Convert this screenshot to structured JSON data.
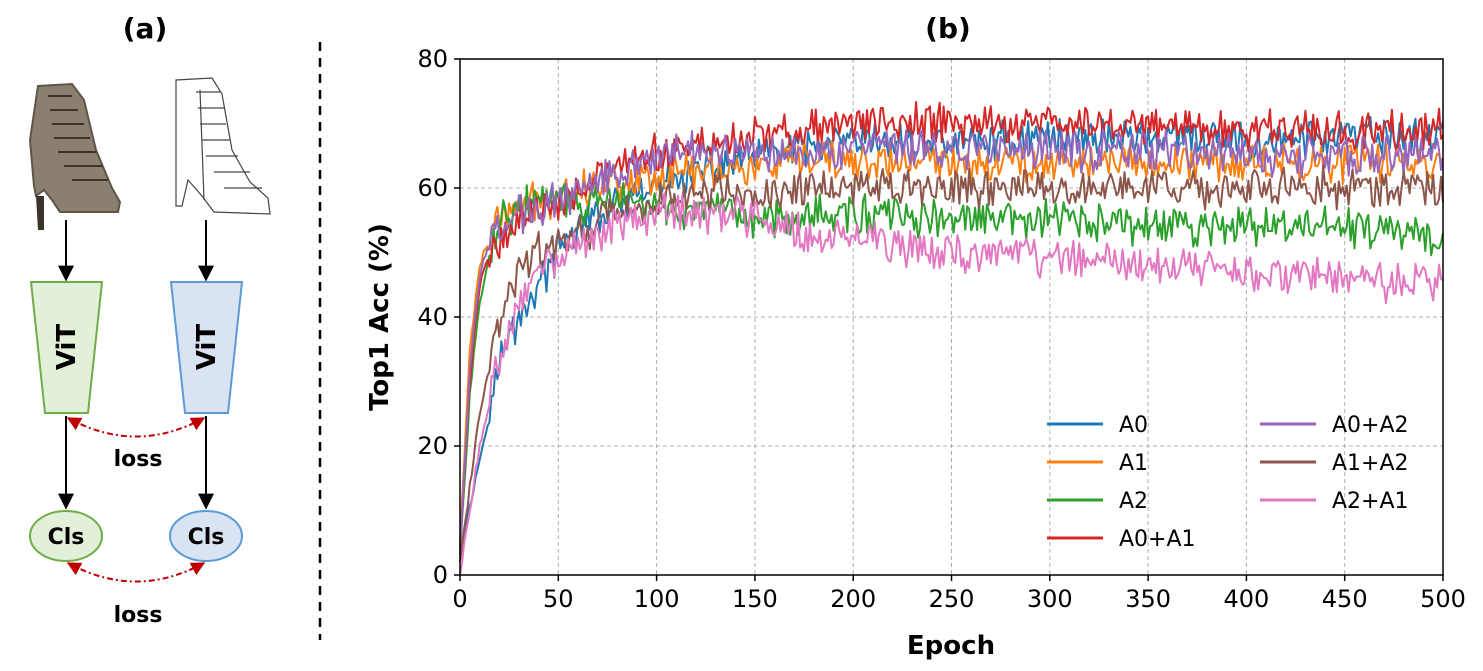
{
  "panel_a": {
    "label": "(a)",
    "encoder_left": "ViT",
    "encoder_right": "ViT",
    "cls_left": "Cls",
    "cls_right": "Cls",
    "loss_top": "loss",
    "loss_bottom": "loss",
    "colors": {
      "green_fill": "#e2efd9",
      "green_stroke": "#70ad47",
      "blue_fill": "#dae3f3",
      "blue_stroke": "#5b9bd5",
      "loss_arrow": "#c00000"
    }
  },
  "chart_data": {
    "panel_label": "(b)",
    "type": "line",
    "title": "",
    "xlabel": "Epoch",
    "ylabel": "Top1 Acc (%)",
    "xlim": [
      0,
      500
    ],
    "ylim": [
      0,
      80
    ],
    "xticks": [
      0,
      50,
      100,
      150,
      200,
      250,
      300,
      350,
      400,
      450,
      500
    ],
    "yticks": [
      0,
      20,
      40,
      60,
      80
    ],
    "grid": true,
    "legend_position": "bottom-right",
    "series": [
      {
        "name": "A0",
        "color": "#1f77b4",
        "x": [
          0,
          10,
          20,
          30,
          40,
          50,
          60,
          80,
          100,
          125,
          150,
          175,
          200,
          250,
          300,
          350,
          400,
          450,
          500
        ],
        "values": [
          3,
          18,
          33,
          40,
          45,
          50,
          54,
          57,
          60,
          63,
          65,
          66,
          67,
          67,
          68,
          68,
          67,
          68,
          68
        ]
      },
      {
        "name": "A1",
        "color": "#ff7f0e",
        "x": [
          0,
          5,
          10,
          15,
          20,
          30,
          40,
          50,
          60,
          80,
          100,
          125,
          150,
          175,
          200,
          250,
          300,
          350,
          400,
          450,
          500
        ],
        "values": [
          5,
          35,
          48,
          52,
          55,
          57,
          58,
          59,
          60,
          61,
          62,
          63,
          63,
          64,
          64,
          64,
          64,
          64,
          64,
          64,
          64
        ]
      },
      {
        "name": "A2",
        "color": "#2ca02c",
        "x": [
          0,
          5,
          10,
          15,
          20,
          30,
          40,
          50,
          60,
          80,
          100,
          125,
          150,
          175,
          200,
          250,
          300,
          350,
          400,
          450,
          500
        ],
        "values": [
          3,
          28,
          42,
          50,
          55,
          57,
          58,
          58,
          57,
          58,
          57,
          56,
          55,
          56,
          56,
          55,
          55,
          54,
          54,
          54,
          52
        ]
      },
      {
        "name": "A0+A1",
        "color": "#d62728",
        "x": [
          0,
          5,
          10,
          15,
          20,
          30,
          40,
          50,
          60,
          80,
          100,
          125,
          150,
          175,
          200,
          250,
          300,
          350,
          400,
          450,
          500
        ],
        "values": [
          4,
          30,
          45,
          50,
          52,
          55,
          57,
          58,
          60,
          63,
          65,
          67,
          68,
          69,
          70,
          70,
          70,
          70,
          69,
          69,
          69
        ]
      },
      {
        "name": "A0+A2",
        "color": "#9467bd",
        "x": [
          0,
          5,
          10,
          15,
          20,
          30,
          40,
          50,
          60,
          80,
          100,
          125,
          150,
          175,
          200,
          250,
          300,
          350,
          400,
          450,
          500
        ],
        "values": [
          4,
          32,
          46,
          52,
          54,
          56,
          57,
          58,
          60,
          63,
          65,
          66,
          66,
          66,
          66,
          66,
          66,
          66,
          65,
          65,
          65
        ]
      },
      {
        "name": "A1+A2",
        "color": "#8c564b",
        "x": [
          0,
          10,
          20,
          30,
          40,
          50,
          60,
          80,
          100,
          125,
          150,
          175,
          200,
          250,
          300,
          350,
          400,
          450,
          500
        ],
        "values": [
          2,
          25,
          40,
          47,
          50,
          52,
          53,
          56,
          58,
          59,
          59,
          60,
          60,
          60,
          60,
          60,
          60,
          60,
          60
        ]
      },
      {
        "name": "A2+A1",
        "color": "#e377c2",
        "x": [
          0,
          10,
          20,
          30,
          40,
          50,
          60,
          80,
          100,
          125,
          150,
          175,
          200,
          250,
          300,
          350,
          400,
          450,
          500
        ],
        "values": [
          0,
          20,
          33,
          42,
          47,
          50,
          52,
          54,
          56,
          56,
          55,
          53,
          52,
          50,
          49,
          48,
          47,
          46,
          45
        ]
      }
    ]
  }
}
